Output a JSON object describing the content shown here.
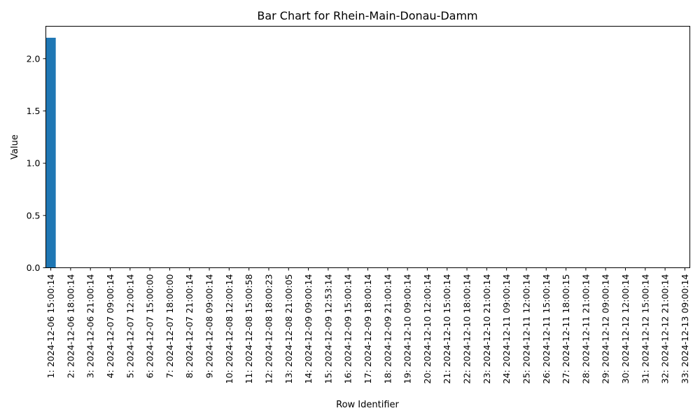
{
  "chart_data": {
    "type": "bar",
    "title": "Bar Chart for Rhein-Main-Donau-Damm",
    "xlabel": "Row Identifier",
    "ylabel": "Value",
    "ylim": [
      0,
      2.31
    ],
    "yticks": [
      "0.0",
      "0.5",
      "1.0",
      "1.5",
      "2.0"
    ],
    "ytick_values": [
      0,
      0.5,
      1.0,
      1.5,
      2.0
    ],
    "grid": false,
    "legend": "none",
    "bar_color": "#1f77b4",
    "categories": [
      "1: 2024-12-06 15:00:14",
      "2: 2024-12-06 18:00:14",
      "3: 2024-12-06 21:00:14",
      "4: 2024-12-07 09:00:14",
      "5: 2024-12-07 12:00:14",
      "6: 2024-12-07 15:00:00",
      "7: 2024-12-07 18:00:00",
      "8: 2024-12-07 21:00:14",
      "9: 2024-12-08 09:00:14",
      "10: 2024-12-08 12:00:14",
      "11: 2024-12-08 15:00:58",
      "12: 2024-12-08 18:00:23",
      "13: 2024-12-08 21:00:05",
      "14: 2024-12-09 09:00:14",
      "15: 2024-12-09 12:53:14",
      "16: 2024-12-09 15:00:14",
      "17: 2024-12-09 18:00:14",
      "18: 2024-12-09 21:00:14",
      "19: 2024-12-10 09:00:14",
      "20: 2024-12-10 12:00:14",
      "21: 2024-12-10 15:00:14",
      "22: 2024-12-10 18:00:14",
      "23: 2024-12-10 21:00:14",
      "24: 2024-12-11 09:00:14",
      "25: 2024-12-11 12:00:14",
      "26: 2024-12-11 15:00:14",
      "27: 2024-12-11 18:00:15",
      "28: 2024-12-11 21:00:14",
      "29: 2024-12-12 09:00:14",
      "30: 2024-12-12 12:00:14",
      "31: 2024-12-12 15:00:14",
      "32: 2024-12-12 21:00:14",
      "33: 2024-12-13 09:00:14"
    ],
    "values": [
      2.2,
      0,
      0,
      0,
      0,
      0,
      0,
      0,
      0,
      0,
      0,
      0,
      0,
      0,
      0,
      0,
      0,
      0,
      0,
      0,
      0,
      0,
      0,
      0,
      0,
      0,
      0,
      0,
      0,
      0,
      0,
      0,
      0
    ]
  }
}
